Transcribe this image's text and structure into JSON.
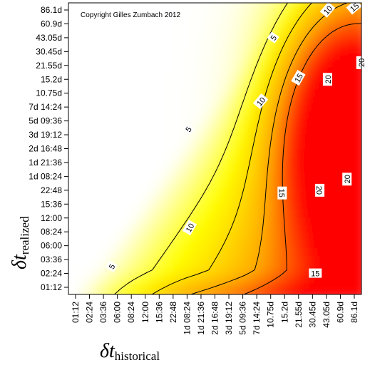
{
  "chart_data": {
    "type": "heatmap",
    "title": "",
    "copyright": "Copyright Gilles Zumbach 2012",
    "xlabel": {
      "symbol": "δt",
      "subscript": "historical"
    },
    "ylabel": {
      "symbol": "δt",
      "subscript": "realized"
    },
    "x_ticks": [
      "01:12",
      "02:24",
      "03:36",
      "06:00",
      "08:24",
      "12:00",
      "15:36",
      "22:48",
      "1d 08:24",
      "1d 21:36",
      "2d 16:48",
      "3d 19:12",
      "5d 09:36",
      "7d 14:24",
      "10.75d",
      "15.2d",
      "21.55d",
      "30.45d",
      "43.05d",
      "60.9d",
      "86.1d"
    ],
    "y_ticks": [
      "01:12",
      "02:24",
      "03:36",
      "06:00",
      "08:24",
      "12:00",
      "15:36",
      "22:48",
      "1d 08:24",
      "1d 21:36",
      "2d 16:48",
      "3d 19:12",
      "5d 09:36",
      "7d 14:24",
      "10.75d",
      "15.2d",
      "21.55d",
      "30.45d",
      "43.05d",
      "60.9d",
      "86.1d"
    ],
    "contour_levels": [
      5,
      10,
      15,
      20
    ],
    "contour_labels": [
      {
        "text": "5",
        "x": 2.6,
        "y": 1.5,
        "angle": -60
      },
      {
        "text": "5",
        "x": 8.1,
        "y": 11.4,
        "angle": -55
      },
      {
        "text": "5",
        "x": 14.2,
        "y": 18.0,
        "angle": -55
      },
      {
        "text": "10",
        "x": 8.2,
        "y": 4.3,
        "angle": -60
      },
      {
        "text": "10",
        "x": 13.3,
        "y": 13.4,
        "angle": -50
      },
      {
        "text": "10",
        "x": 18.1,
        "y": 20.0,
        "angle": -50
      },
      {
        "text": "15",
        "x": 14.8,
        "y": 6.8,
        "angle": 90
      },
      {
        "text": "15",
        "x": 16.0,
        "y": 15.1,
        "angle": -60
      },
      {
        "text": "15",
        "x": 20.0,
        "y": 20.2,
        "angle": -40
      },
      {
        "text": "15",
        "x": 17.2,
        "y": 1.0,
        "angle": 0
      },
      {
        "text": "20",
        "x": 17.5,
        "y": 7.0,
        "angle": 90
      },
      {
        "text": "20",
        "x": 18.1,
        "y": 15.0,
        "angle": -90
      },
      {
        "text": "20",
        "x": 19.5,
        "y": 7.8,
        "angle": -90
      },
      {
        "text": "20",
        "x": 20.5,
        "y": 16.2,
        "angle": -90
      }
    ],
    "colors": {
      "low": "#ffffff",
      "mid_low": "#ffff00",
      "mid": "#ffa500",
      "high": "#ff0000"
    },
    "grid": false,
    "legend": "none"
  }
}
